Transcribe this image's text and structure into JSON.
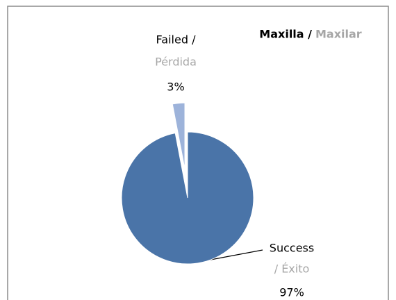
{
  "chart_data": {
    "type": "pie",
    "title": "Maxilla /",
    "title_translation": "Maxilar",
    "categories": [
      "Failed /",
      "Success"
    ],
    "categories_translation": [
      "Pérdida",
      "/ Éxito"
    ],
    "values": [
      3,
      97
    ],
    "value_labels": [
      "3%",
      "97%"
    ],
    "colors": [
      "#9db3da",
      "#4a74a8"
    ]
  }
}
